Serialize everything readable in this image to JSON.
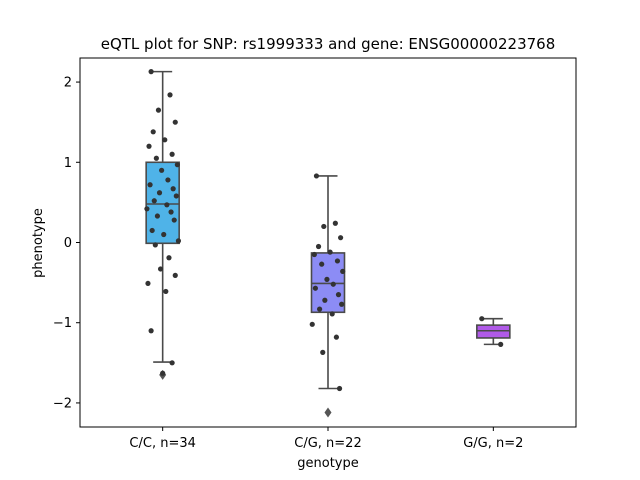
{
  "chart_data": {
    "type": "box",
    "title": "eQTL plot for SNP: rs1999333 and gene: ENSG00000223768",
    "xlabel": "genotype",
    "ylabel": "phenotype",
    "ylim": [
      -2.3,
      2.3
    ],
    "yticks": [
      -2,
      -1,
      0,
      1,
      2
    ],
    "grid": false,
    "categories": [
      "C/C, n=34",
      "C/G, n=22",
      "G/G, n=2"
    ],
    "boxes": [
      {
        "category": "C/C, n=34",
        "color": "#4fb3e8",
        "q1": -0.01,
        "median": 0.48,
        "q3": 1.0,
        "whisker_low": -1.49,
        "whisker_high": 2.13,
        "outliers": [
          -1.65
        ],
        "points": [
          2.13,
          1.84,
          1.65,
          1.5,
          1.38,
          1.28,
          1.2,
          1.1,
          1.05,
          0.97,
          0.9,
          0.78,
          0.72,
          0.67,
          0.62,
          0.58,
          0.52,
          0.47,
          0.42,
          0.38,
          0.33,
          0.28,
          0.15,
          0.1,
          0.02,
          -0.03,
          -0.19,
          -0.33,
          -0.41,
          -0.51,
          -0.61,
          -1.1,
          -1.5,
          -1.63
        ]
      },
      {
        "category": "C/G, n=22",
        "color": "#8c8cf5",
        "q1": -0.87,
        "median": -0.51,
        "q3": -0.13,
        "whisker_low": -1.82,
        "whisker_high": 0.83,
        "outliers": [
          -2.12
        ],
        "points": [
          0.83,
          0.24,
          0.2,
          0.06,
          -0.05,
          -0.12,
          -0.15,
          -0.23,
          -0.27,
          -0.36,
          -0.46,
          -0.52,
          -0.57,
          -0.65,
          -0.72,
          -0.77,
          -0.83,
          -0.89,
          -1.02,
          -1.18,
          -1.37,
          -1.82
        ]
      },
      {
        "category": "G/G, n=2",
        "color": "#b05ae8",
        "q1": -1.19,
        "median": -1.1,
        "q3": -1.03,
        "whisker_low": -1.27,
        "whisker_high": -0.95,
        "outliers": [],
        "points": [
          -0.95,
          -1.27
        ]
      }
    ]
  }
}
